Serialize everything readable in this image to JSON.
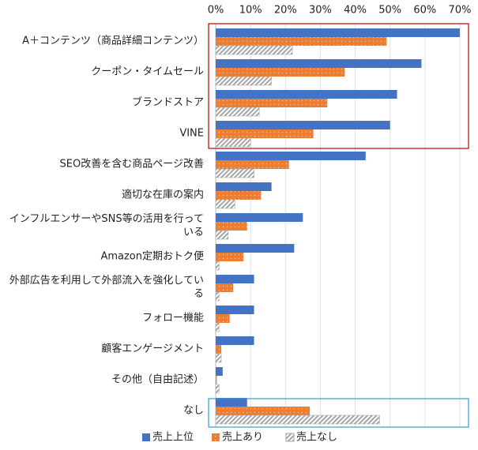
{
  "chart_data": {
    "type": "hbar",
    "categories": [
      "A＋コンテンツ（商品詳細コンテンツ）",
      "クーポン・タイムセール",
      "ブランドストア",
      "VINE",
      "SEO改善を含む商品ページ改善",
      "適切な在庫の案内",
      "インフルエンサーやSNS等の活用を行っている",
      "Amazon定期おトク便",
      "外部広告を利用して外部流入を強化している",
      "フォロー機能",
      "顧客エンゲージメント",
      "その他（自由記述）",
      "なし"
    ],
    "series": [
      {
        "name": "売上上位",
        "color": "#4472c4",
        "pattern": "solid",
        "values": [
          70,
          59,
          52,
          50,
          43,
          16,
          25,
          22.5,
          11,
          11,
          11,
          2,
          9
        ]
      },
      {
        "name": "売上あり",
        "color": "#ed7d31",
        "pattern": "dots",
        "values": [
          49,
          37,
          32,
          28,
          21,
          13,
          9,
          8,
          5,
          4,
          1.6,
          0.3,
          27
        ]
      },
      {
        "name": "売上なし",
        "color": "#a5a5a5",
        "pattern": "hatch",
        "values": [
          22,
          16,
          12.5,
          10,
          11,
          5.5,
          3.6,
          1,
          1,
          1,
          1.6,
          1,
          47
        ]
      }
    ],
    "xlim": [
      0,
      70
    ],
    "xticks": [
      {
        "value": 0,
        "label": "0%"
      },
      {
        "value": 10,
        "label": "10%"
      },
      {
        "value": 20,
        "label": "20%"
      },
      {
        "value": 30,
        "label": "30%"
      },
      {
        "value": 40,
        "label": "40%"
      },
      {
        "value": 50,
        "label": "50%"
      },
      {
        "value": 60,
        "label": "60%"
      },
      {
        "value": 70,
        "label": "70%"
      }
    ],
    "grid": true,
    "legend": "bottom"
  }
}
